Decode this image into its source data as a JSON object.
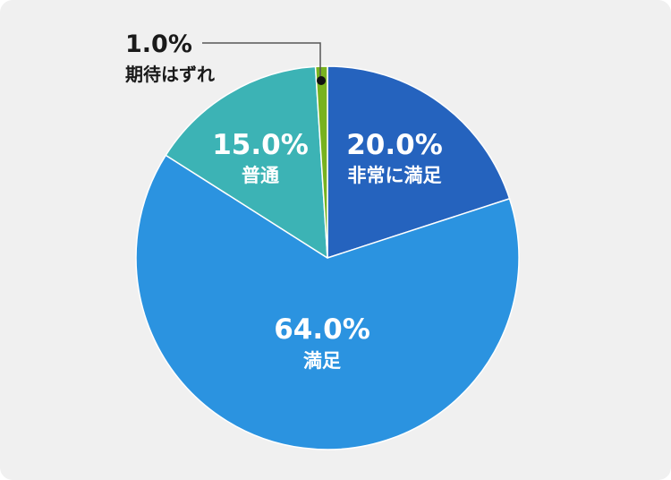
{
  "chart_data": {
    "type": "pie",
    "start_angle_deg": 0,
    "direction": "clockwise",
    "slices": [
      {
        "label": "非常に満足",
        "value": 20.0,
        "display": "20.0%",
        "color": "#2563be"
      },
      {
        "label": "満足",
        "value": 64.0,
        "display": "64.0%",
        "color": "#2b93e0"
      },
      {
        "label": "普通",
        "value": 15.0,
        "display": "15.0%",
        "color": "#3cb3b5"
      },
      {
        "label": "期待はずれ",
        "value": 1.0,
        "display": "1.0%",
        "color": "#78b21f"
      }
    ],
    "outside_label_slices": [
      3
    ]
  },
  "colors": {
    "background": "#f0f0f0",
    "slice_border": "#ffffff",
    "leader_line": "#555555"
  }
}
